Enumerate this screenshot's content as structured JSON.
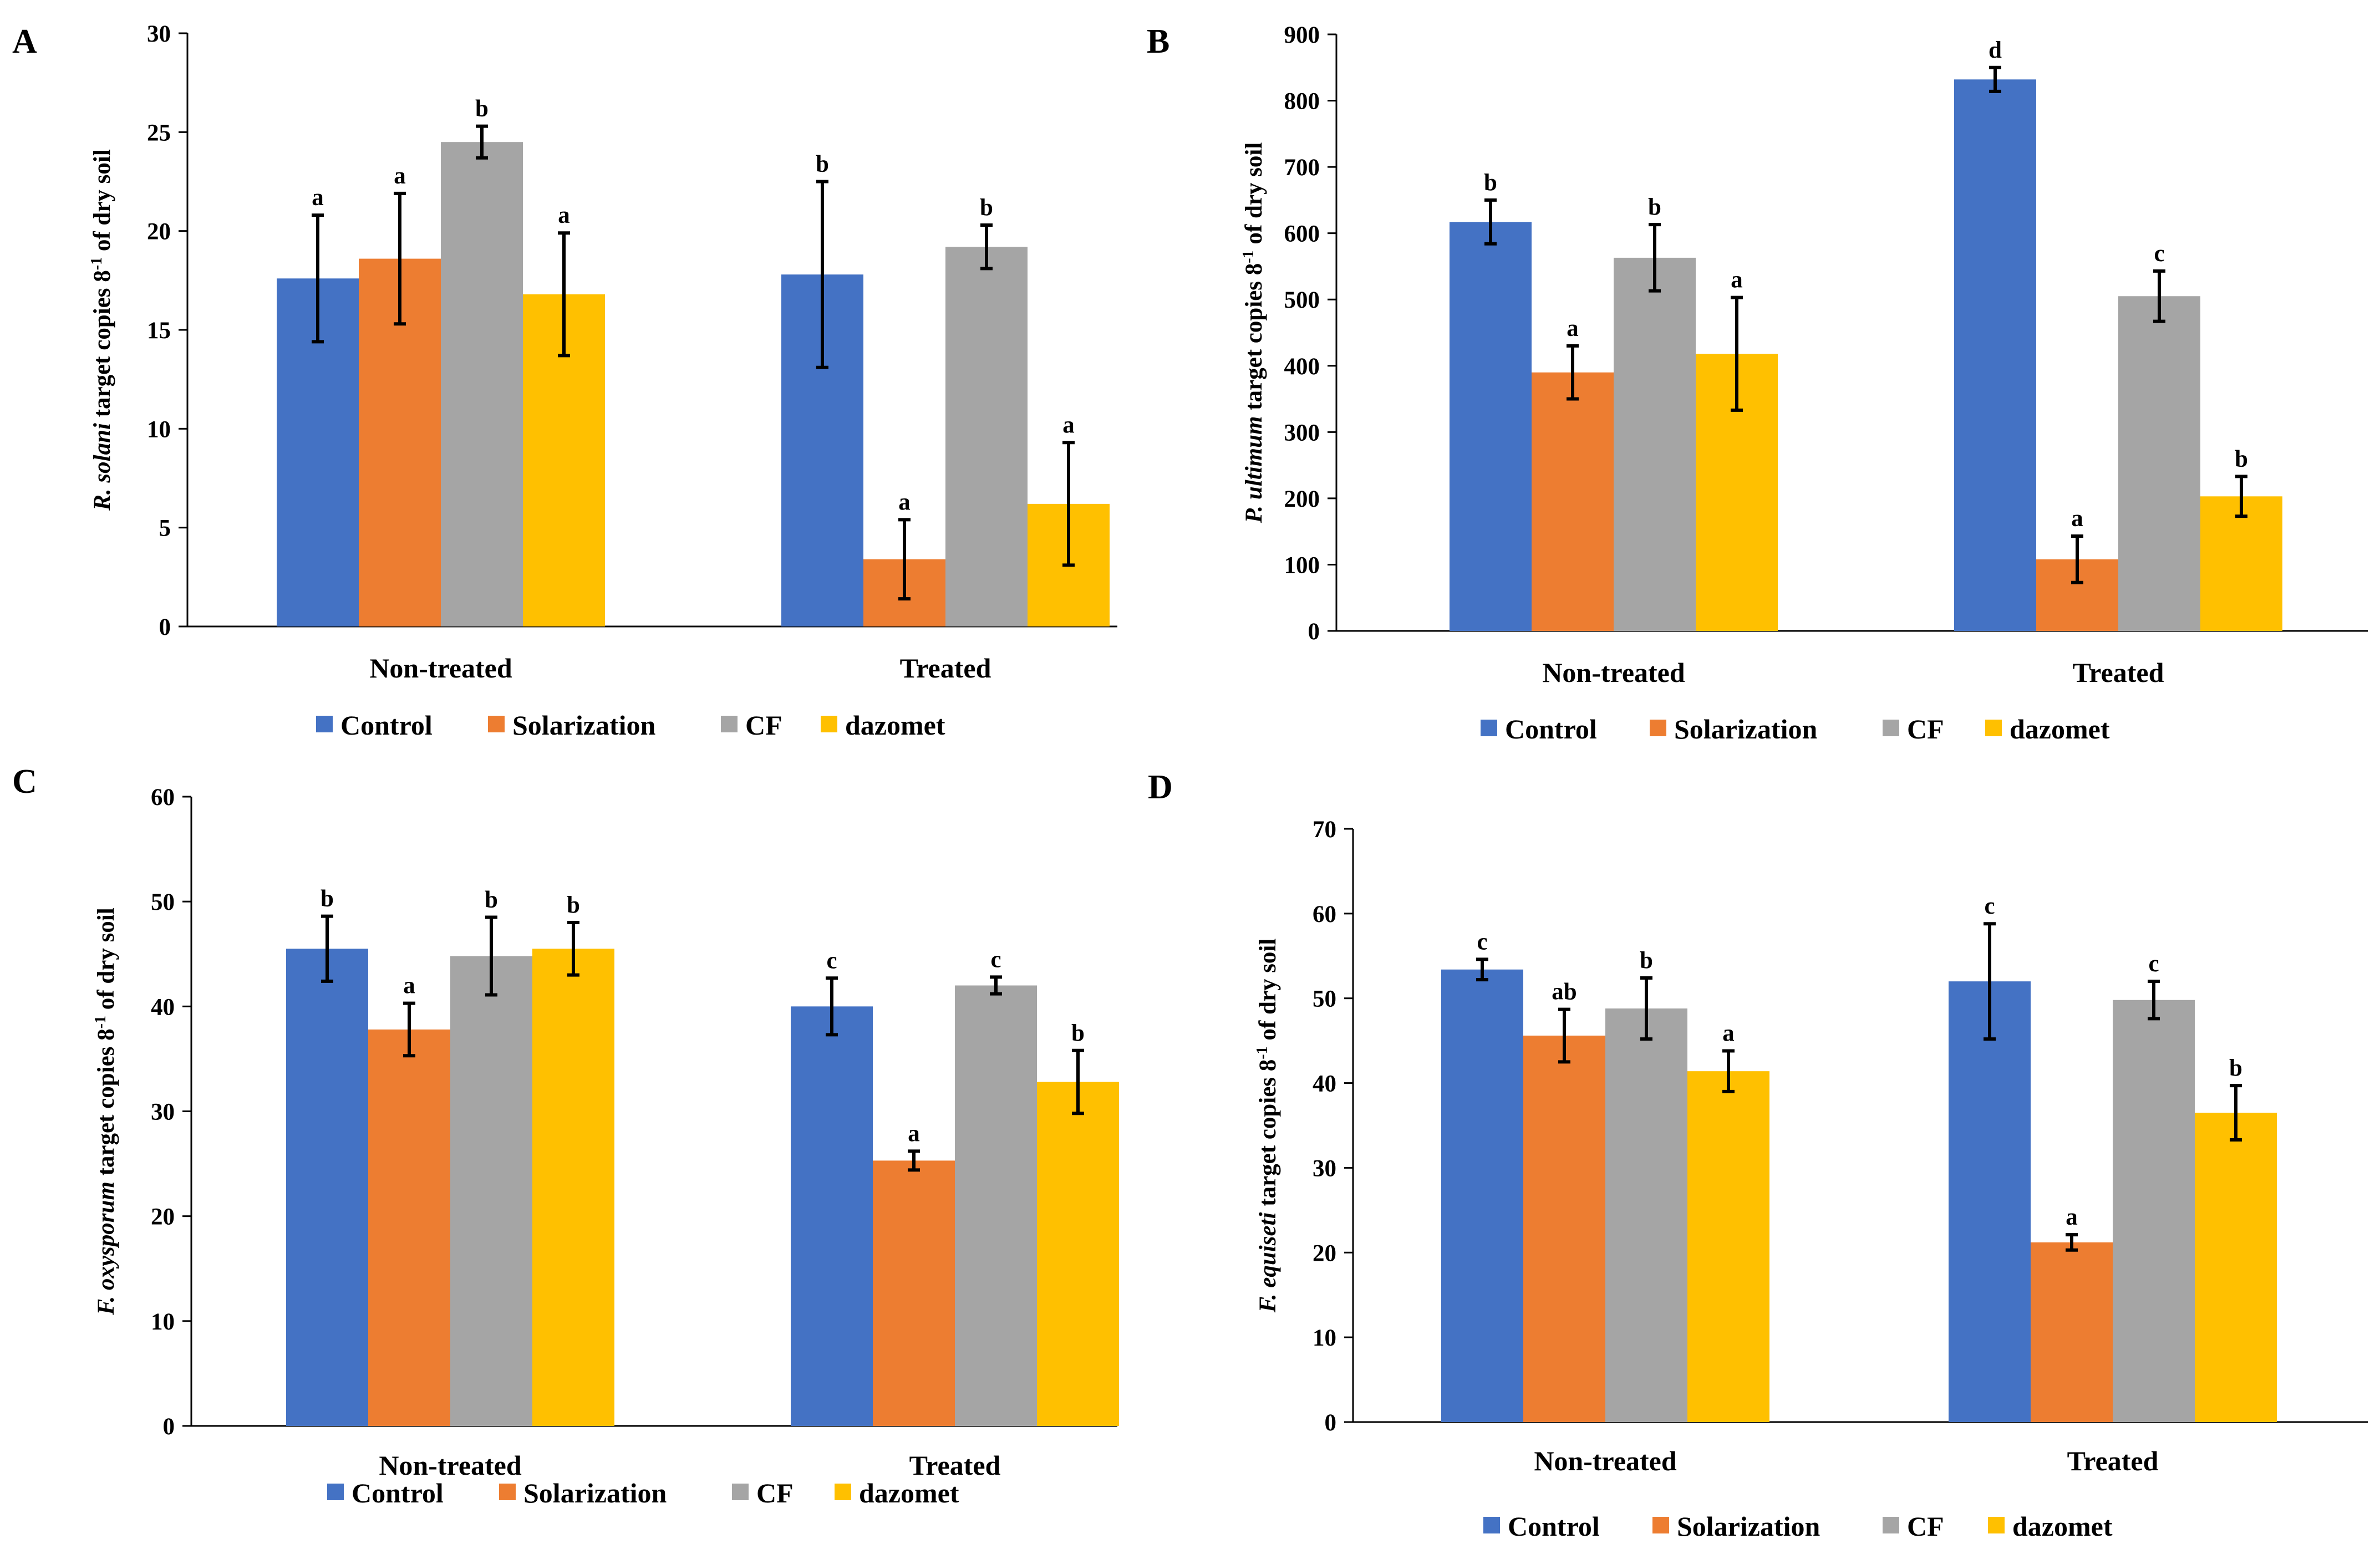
{
  "chart_data": [
    {
      "panel": "A",
      "type": "bar",
      "ylabel_italic": "R. solani",
      "ylabel_rest": " target copies 8",
      "ylabel_sup": "-1",
      "ylabel_end": " of dry soil",
      "ylim": [
        0,
        30
      ],
      "yticks": [
        0,
        5,
        10,
        15,
        20,
        25,
        30
      ],
      "categories": [
        "Non-treated",
        "Treated"
      ],
      "series": [
        {
          "name": "Control",
          "color": "#4472C4",
          "values": [
            17.6,
            17.8
          ],
          "errors": [
            3.2,
            4.7
          ],
          "sig": [
            "a",
            "b"
          ]
        },
        {
          "name": "Solarization",
          "color": "#ED7D31",
          "values": [
            18.6,
            3.4
          ],
          "errors": [
            3.3,
            2.0
          ],
          "sig": [
            "a",
            "a"
          ]
        },
        {
          "name": "CF",
          "color": "#A5A5A5",
          "values": [
            24.5,
            19.2
          ],
          "errors": [
            0.8,
            1.1
          ],
          "sig": [
            "b",
            "b"
          ]
        },
        {
          "name": "dazomet",
          "color": "#FFC000",
          "values": [
            16.8,
            6.2
          ],
          "errors": [
            3.1,
            3.1
          ],
          "sig": [
            "a",
            "a"
          ]
        }
      ]
    },
    {
      "panel": "B",
      "type": "bar",
      "ylabel_italic": "P. ultimum",
      "ylabel_rest": " target copies 8",
      "ylabel_sup": "-1",
      "ylabel_end": " of dry soil",
      "ylim": [
        0,
        900
      ],
      "yticks": [
        0,
        100,
        200,
        300,
        400,
        500,
        600,
        700,
        800,
        900
      ],
      "categories": [
        "Non-treated",
        "Treated"
      ],
      "series": [
        {
          "name": "Control",
          "color": "#4472C4",
          "values": [
            617,
            832
          ],
          "errors": [
            33,
            18
          ],
          "sig": [
            "b",
            "d"
          ]
        },
        {
          "name": "Solarization",
          "color": "#ED7D31",
          "values": [
            390,
            108
          ],
          "errors": [
            40,
            35
          ],
          "sig": [
            "a",
            "a"
          ]
        },
        {
          "name": "CF",
          "color": "#A5A5A5",
          "values": [
            563,
            505
          ],
          "errors": [
            50,
            38
          ],
          "sig": [
            "b",
            "c"
          ]
        },
        {
          "name": "dazomet",
          "color": "#FFC000",
          "values": [
            418,
            203
          ],
          "errors": [
            85,
            30
          ],
          "sig": [
            "a",
            "b"
          ]
        }
      ]
    },
    {
      "panel": "C",
      "type": "bar",
      "ylabel_italic": "F. oxysporum",
      "ylabel_rest": " target copies 8",
      "ylabel_sup": "-1",
      "ylabel_end": " of dry soil",
      "ylim": [
        0,
        60
      ],
      "yticks": [
        0,
        10,
        20,
        30,
        40,
        50,
        60
      ],
      "categories": [
        "Non-treated",
        "Treated"
      ],
      "series": [
        {
          "name": "Control",
          "color": "#4472C4",
          "values": [
            45.5,
            40.0
          ],
          "errors": [
            3.1,
            2.7
          ],
          "sig": [
            "b",
            "c"
          ]
        },
        {
          "name": "Solarization",
          "color": "#ED7D31",
          "values": [
            37.8,
            25.3
          ],
          "errors": [
            2.5,
            0.9
          ],
          "sig": [
            "a",
            "a"
          ]
        },
        {
          "name": "CF",
          "color": "#A5A5A5",
          "values": [
            44.8,
            42.0
          ],
          "errors": [
            3.7,
            0.8
          ],
          "sig": [
            "b",
            "c"
          ]
        },
        {
          "name": "dazomet",
          "color": "#FFC000",
          "values": [
            45.5,
            32.8
          ],
          "errors": [
            2.5,
            3.0
          ],
          "sig": [
            "b",
            "b"
          ]
        }
      ]
    },
    {
      "panel": "D",
      "type": "bar",
      "ylabel_italic": "F. equiseti",
      "ylabel_rest": " target copies 8",
      "ylabel_sup": "-1",
      "ylabel_end": " of dry soil",
      "ylim": [
        0,
        70
      ],
      "yticks": [
        0,
        10,
        20,
        30,
        40,
        50,
        60,
        70
      ],
      "categories": [
        "Non-treated",
        "Treated"
      ],
      "series": [
        {
          "name": "Control",
          "color": "#4472C4",
          "values": [
            53.4,
            52.0
          ],
          "errors": [
            1.2,
            6.8
          ],
          "sig": [
            "c",
            "c"
          ]
        },
        {
          "name": "Solarization",
          "color": "#ED7D31",
          "values": [
            45.6,
            21.2
          ],
          "errors": [
            3.1,
            0.9
          ],
          "sig": [
            "ab",
            "a"
          ]
        },
        {
          "name": "CF",
          "color": "#A5A5A5",
          "values": [
            48.8,
            49.8
          ],
          "errors": [
            3.6,
            2.2
          ],
          "sig": [
            "b",
            "c"
          ]
        },
        {
          "name": "dazomet",
          "color": "#FFC000",
          "values": [
            41.4,
            36.5
          ],
          "errors": [
            2.4,
            3.2
          ],
          "sig": [
            "a",
            "b"
          ]
        }
      ]
    }
  ]
}
